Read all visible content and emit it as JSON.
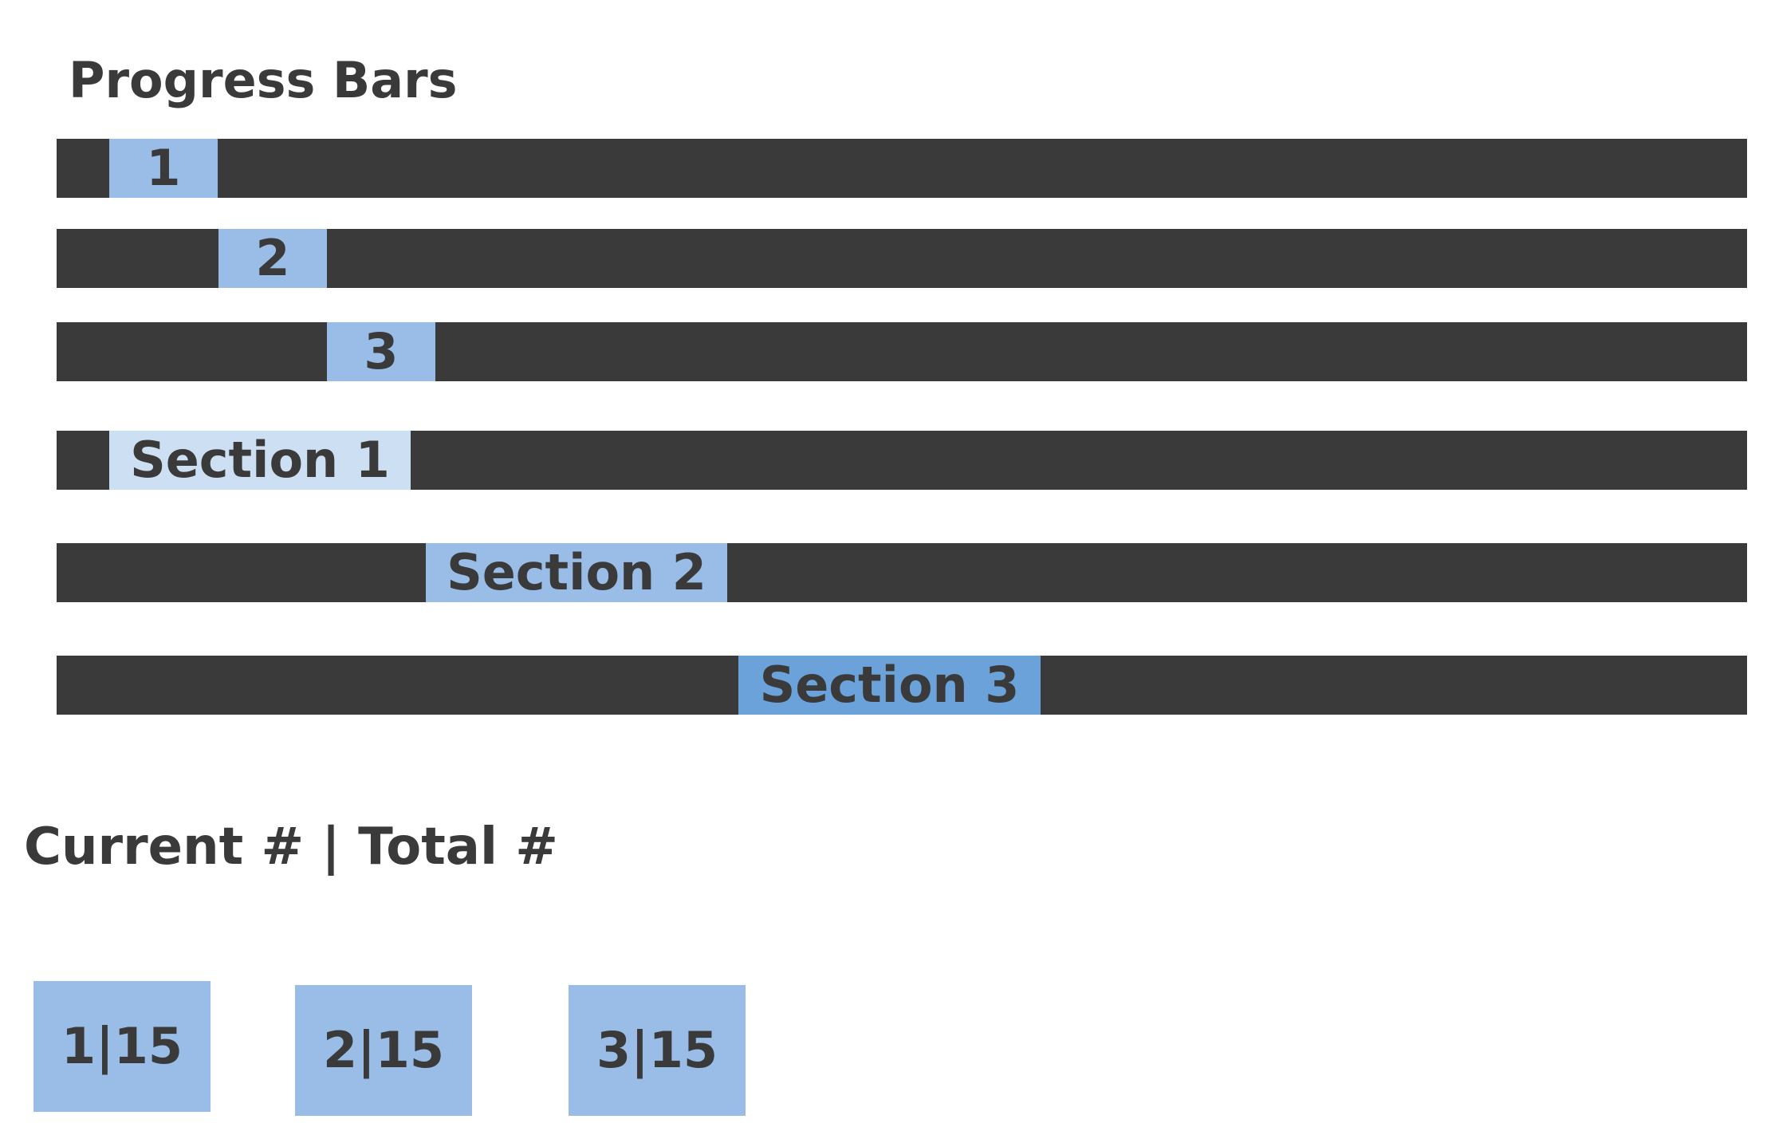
{
  "title": "Progress Bars",
  "subtitle": "Current # | Total #",
  "colors": {
    "track": "#3a3a3a",
    "text": "#3a3a3a",
    "light_blue": "#99bde6",
    "pale_blue": "#cde0f3",
    "mid_blue": "#6aa2d9"
  },
  "number_bars": [
    {
      "label": "1",
      "color": "#99bde6"
    },
    {
      "label": "2",
      "color": "#99bde6"
    },
    {
      "label": "3",
      "color": "#99bde6"
    }
  ],
  "section_bars": [
    {
      "label": "Section 1",
      "color": "#cde0f3"
    },
    {
      "label": "Section 2",
      "color": "#99bde6"
    },
    {
      "label": "Section 3",
      "color": "#6aa2d9"
    }
  ],
  "counters": [
    {
      "label": "1|15",
      "color": "#99bde6"
    },
    {
      "label": "2|15",
      "color": "#99bde6"
    },
    {
      "label": "3|15",
      "color": "#99bde6"
    }
  ]
}
